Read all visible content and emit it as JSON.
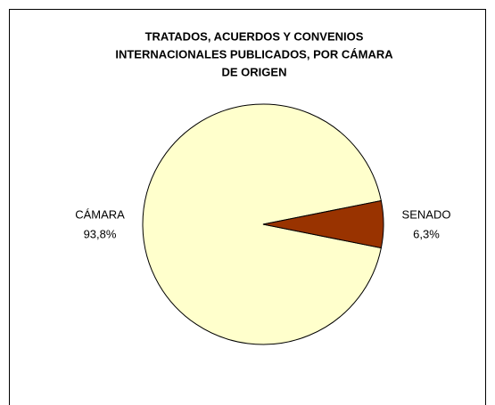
{
  "chart_data": {
    "type": "pie",
    "title": [
      "TRATADOS, ACUERDOS Y CONVENIOS",
      "INTERNACIONALES PUBLICADOS, POR CÁMARA",
      "DE ORIGEN"
    ],
    "categories": [
      "CÁMARA",
      "SENADO"
    ],
    "values": [
      93.8,
      6.3
    ],
    "value_labels": [
      "93,8%",
      "6,3%"
    ],
    "colors": [
      "#ffffcc",
      "#993300"
    ]
  }
}
